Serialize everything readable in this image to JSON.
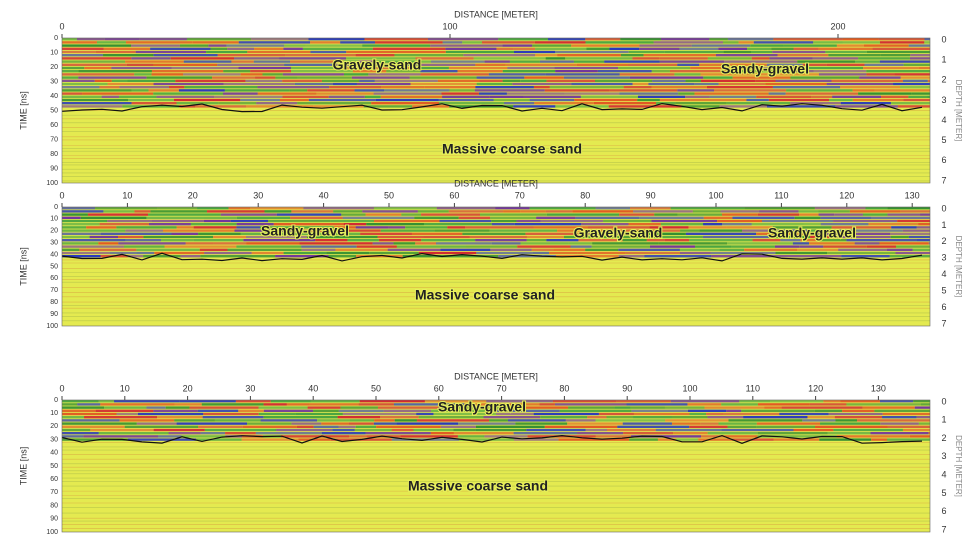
{
  "panels": [
    {
      "x_label": "DISTANCE [METER]",
      "xticks": [
        0,
        100,
        200
      ],
      "y_label": "TIME [ns]",
      "yticks": [
        0,
        10,
        20,
        30,
        40,
        50,
        60,
        70,
        80,
        90,
        100
      ],
      "y2_label": "DEPTH [METER]",
      "y2ticks": [
        0,
        1,
        2,
        3,
        4,
        5,
        6,
        7
      ],
      "annotations": [
        "Gravely-sand",
        "Sandy-gravel",
        "Massive coarse sand"
      ]
    },
    {
      "x_label": "DISTANCE [METER]",
      "xticks": [
        0,
        10,
        20,
        30,
        40,
        50,
        60,
        70,
        80,
        90,
        100,
        110,
        120,
        130
      ],
      "y_label": "TIME [ns]",
      "yticks": [
        0,
        10,
        20,
        30,
        40,
        50,
        60,
        70,
        80,
        90,
        100
      ],
      "y2_label": "DEPTH [METER]",
      "y2ticks": [
        0,
        1,
        2,
        3,
        4,
        5,
        6,
        7
      ],
      "annotations": [
        "Sandy-gravel",
        "Gravely-sand",
        "Sandy-gravel",
        "Massive coarse sand"
      ]
    },
    {
      "x_label": "DISTANCE [METER]",
      "xticks": [
        0,
        10,
        20,
        30,
        40,
        50,
        60,
        70,
        80,
        90,
        100,
        110,
        120,
        130
      ],
      "y_label": "TIME [ns]",
      "yticks": [
        0,
        10,
        20,
        30,
        40,
        50,
        60,
        70,
        80,
        90,
        100
      ],
      "y2_label": "DEPTH [METER]",
      "y2ticks": [
        0,
        1,
        2,
        3,
        4,
        5,
        6,
        7
      ],
      "annotations": [
        "Sandy-gravel",
        "Massive coarse sand"
      ]
    }
  ]
}
